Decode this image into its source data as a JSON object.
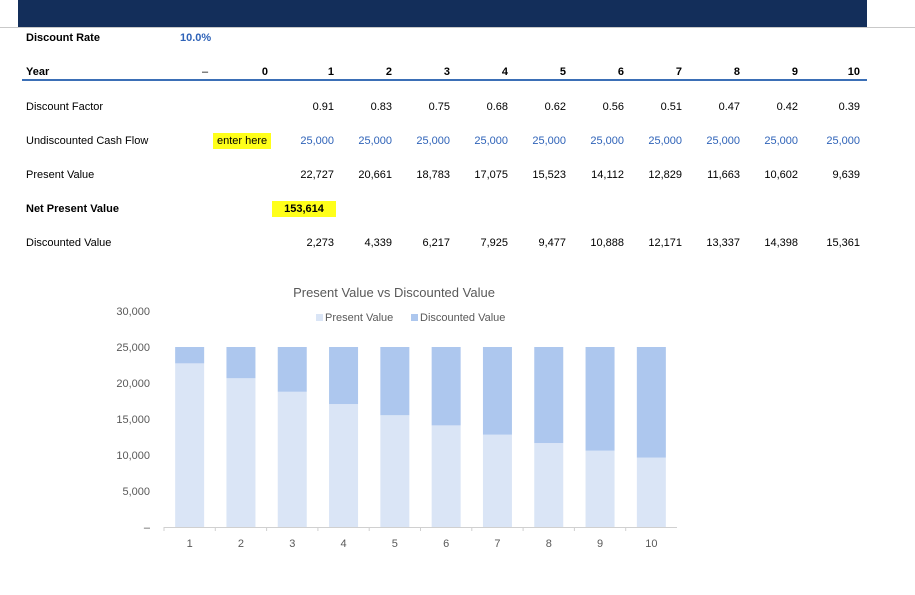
{
  "sheet": {
    "discount_rate_label": "Discount Rate",
    "discount_rate_value": "10.0%",
    "year_label": "Year",
    "year_dash": "–",
    "years": [
      "0",
      "1",
      "2",
      "3",
      "4",
      "5",
      "6",
      "7",
      "8",
      "9",
      "10"
    ],
    "discount_factor_label": "Discount Factor",
    "discount_factors": [
      "",
      "0.91",
      "0.83",
      "0.75",
      "0.68",
      "0.62",
      "0.56",
      "0.51",
      "0.47",
      "0.42",
      "0.39"
    ],
    "cash_flow_label": "Undiscounted Cash Flow",
    "cash_flow_input": "enter here",
    "cash_flows": [
      "",
      "25,000",
      "25,000",
      "25,000",
      "25,000",
      "25,000",
      "25,000",
      "25,000",
      "25,000",
      "25,000",
      "25,000"
    ],
    "present_value_label": "Present Value",
    "present_values": [
      "",
      "22,727",
      "20,661",
      "18,783",
      "17,075",
      "15,523",
      "14,112",
      "12,829",
      "11,663",
      "10,602",
      "9,639"
    ],
    "npv_label": "Net Present Value",
    "npv_value": "153,614",
    "discounted_value_label": "Discounted Value",
    "discounted_values": [
      "",
      "2,273",
      "4,339",
      "6,217",
      "7,925",
      "9,477",
      "10,888",
      "12,171",
      "13,337",
      "14,398",
      "15,361"
    ]
  },
  "colors": {
    "header_bar": "#132e5a",
    "input_blue": "#2f63b8",
    "highlight": "#ffff1a",
    "present_value_bar": "#dae5f6",
    "discounted_value_bar": "#adc7ee"
  },
  "chart_data": {
    "type": "bar",
    "stacked": true,
    "title": "Present Value vs Discounted Value",
    "categories": [
      "1",
      "2",
      "3",
      "4",
      "5",
      "6",
      "7",
      "8",
      "9",
      "10"
    ],
    "series": [
      {
        "name": "Present Value",
        "values": [
          22727,
          20661,
          18783,
          17075,
          15523,
          14112,
          12829,
          11663,
          10602,
          9639
        ]
      },
      {
        "name": "Discounted Value",
        "values": [
          2273,
          4339,
          6217,
          7925,
          9477,
          10888,
          12171,
          13337,
          14398,
          15361
        ]
      }
    ],
    "ylim": [
      0,
      30000
    ],
    "yticks": [
      "–",
      "5,000",
      "10,000",
      "15,000",
      "20,000",
      "25,000",
      "30,000"
    ],
    "legend_position": "top",
    "grid": false
  }
}
